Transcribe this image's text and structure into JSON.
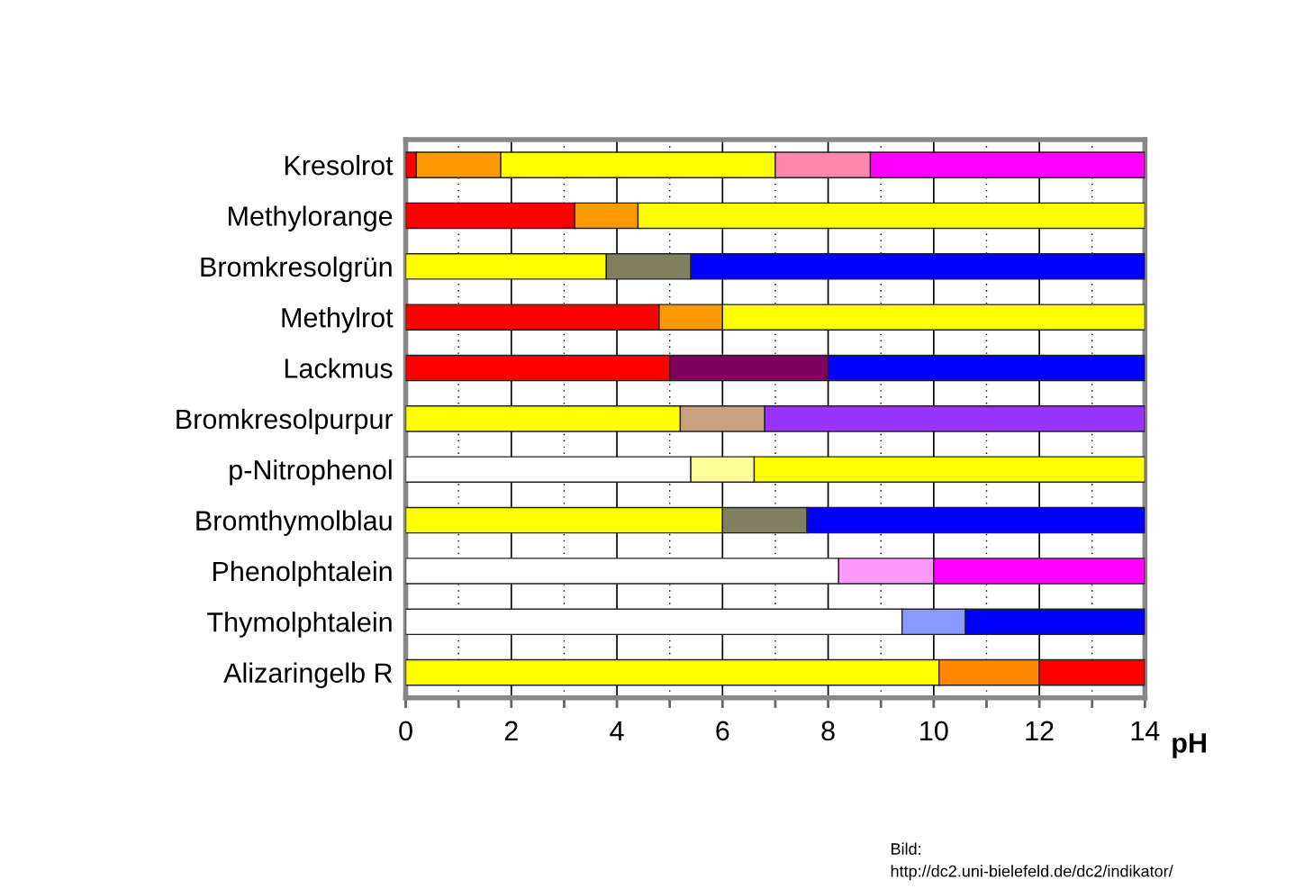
{
  "chart_data": {
    "type": "bar",
    "orientation": "horizontal",
    "stacked": true,
    "categories": [
      "Kresolrot",
      "Methylorange",
      "Bromkresolgrün",
      "Methylrot",
      "Lackmus",
      "Bromkresolpurpur",
      "p-Nitrophenol",
      "Bromthymolblau",
      "Phenolphtalein",
      "Thymolphtalein",
      "Alizaringelb R"
    ],
    "series": [
      {
        "values": [
          0.2,
          3.2,
          3.8,
          4.8,
          5.0,
          5.2,
          5.4,
          6.0,
          8.2,
          9.4,
          10.1
        ],
        "colors": [
          "#ff0000",
          "#ff0000",
          "#ffff00",
          "#ff0000",
          "#ff0000",
          "#ffff00",
          "#ffffff",
          "#ffff00",
          "#ffffff",
          "#ffffff",
          "#ffff00"
        ]
      },
      {
        "values": [
          1.6,
          1.2,
          1.6,
          1.2,
          3.0,
          1.6,
          1.2,
          1.6,
          1.8,
          1.2,
          1.9
        ],
        "colors": [
          "#ff9900",
          "#ff9900",
          "#808060",
          "#ff9900",
          "#800060",
          "#c8a080",
          "#ffff99",
          "#808060",
          "#ff99ff",
          "#8899ff",
          "#ff8800"
        ]
      },
      {
        "values": [
          5.2,
          9.6,
          8.6,
          8.0,
          6.0,
          7.2,
          7.4,
          6.4,
          4.0,
          3.4,
          2.0
        ],
        "colors": [
          "#ffff00",
          "#ffff00",
          "#0000ff",
          "#ffff00",
          "#0000ff",
          "#9933ff",
          "#ffff00",
          "#0000ff",
          "#ff00ff",
          "#0000ff",
          "#ff0000"
        ]
      },
      {
        "values": [
          1.8,
          null,
          null,
          null,
          null,
          null,
          null,
          null,
          null,
          null,
          null
        ],
        "colors": [
          "#ff88aa",
          null,
          null,
          null,
          null,
          null,
          null,
          null,
          null,
          null,
          null
        ]
      },
      {
        "values": [
          5.2,
          null,
          null,
          null,
          null,
          null,
          null,
          null,
          null,
          null,
          null
        ],
        "colors": [
          "#ff00ff",
          null,
          null,
          null,
          null,
          null,
          null,
          null,
          null,
          null,
          null
        ]
      }
    ],
    "xlabel": "pH",
    "xlim": [
      0,
      14
    ],
    "xticks": [
      0,
      {
        "value": 1,
        "label": null
      },
      2,
      {
        "value": 3,
        "label": null
      },
      4,
      {
        "value": 5,
        "label": null
      },
      6,
      {
        "value": 7,
        "label": null
      },
      8,
      {
        "value": 9,
        "label": null
      },
      10,
      {
        "value": 11,
        "label": null
      },
      12,
      {
        "value": 13,
        "label": null
      },
      14
    ],
    "grid": "x",
    "annotations": [
      "Bild:\nhttp://dc2.uni-bielefeld.de/dc2/indikator/"
    ]
  }
}
